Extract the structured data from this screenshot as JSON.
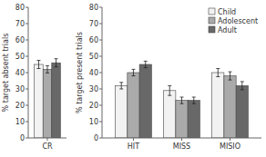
{
  "chart_data": [
    {
      "type": "bar",
      "y_label": "% target absent trials",
      "categories": [
        "CR"
      ],
      "series": [
        {
          "color": "#f2f2f2",
          "values": [
            45
          ],
          "errors": [
            2.5
          ]
        },
        {
          "color": "#aaaaaa",
          "values": [
            42
          ],
          "errors": [
            2.2
          ]
        },
        {
          "color": "#686868",
          "values": [
            46
          ],
          "errors": [
            2.5
          ]
        }
      ],
      "ylim": [
        0,
        80
      ],
      "yticks": [
        0,
        10,
        20,
        30,
        40,
        50,
        60,
        70,
        80
      ]
    },
    {
      "type": "bar",
      "y_label": "% target present trials",
      "categories": [
        "HIT",
        "MISS",
        "MISIO"
      ],
      "series": [
        {
          "name": "Child",
          "color": "#f2f2f2",
          "values": [
            32,
            29,
            40
          ],
          "errors": [
            2.0,
            3.0,
            2.5
          ]
        },
        {
          "name": "Adolescent",
          "color": "#aaaaaa",
          "values": [
            40,
            23,
            38
          ],
          "errors": [
            2.0,
            2.0,
            2.5
          ]
        },
        {
          "name": "Adult",
          "color": "#686868",
          "values": [
            45,
            23,
            32
          ],
          "errors": [
            2.0,
            2.0,
            2.5
          ]
        }
      ],
      "ylim": [
        0,
        80
      ],
      "yticks": [
        0,
        10,
        20,
        30,
        40,
        50,
        60,
        70,
        80
      ],
      "legend": "upper right"
    }
  ]
}
